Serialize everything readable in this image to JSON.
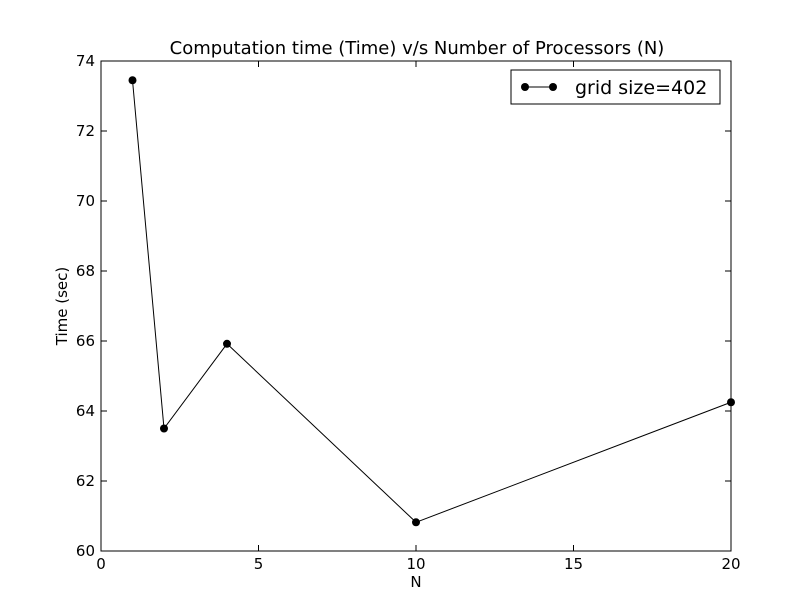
{
  "chart_data": {
    "type": "line",
    "title": "Computation time (Time) v/s Number of Processors (N)",
    "xlabel": "N",
    "ylabel": "Time (sec)",
    "xlim": [
      0,
      20
    ],
    "ylim": [
      60,
      74
    ],
    "xticks": [
      0,
      5,
      10,
      15,
      20
    ],
    "yticks": [
      60,
      62,
      64,
      66,
      68,
      70,
      72,
      74
    ],
    "grid": false,
    "legend_position": "top-right",
    "series": [
      {
        "name": "grid size=402",
        "color": "#000000",
        "marker": "circle",
        "x": [
          1,
          2,
          4,
          10,
          20
        ],
        "y": [
          73.45,
          63.5,
          65.92,
          60.82,
          64.25
        ]
      }
    ]
  }
}
